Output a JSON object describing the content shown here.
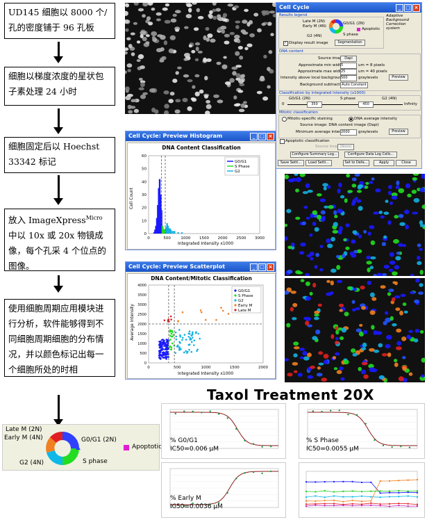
{
  "steps": [
    "UD145 细胞以 8000 个/孔的密度铺于 96 孔板",
    "细胞以梯度浓度的星状包子素处理 24 小时",
    "细胞固定后以 Hoechst 33342 标记",
    "放入 ImageXpress",
    "Micro",
    " 中以 10x 或 20x 物镜成像，每个孔采 4 个位点的图像。",
    "使用细胞周期应用模块进行分析，软件能够得到不同细胞周期细胞的分布情况，并以颜色标记出每一个细胞所处的时相"
  ],
  "cycle_legend": {
    "late_m": "Late M (2N)",
    "early_m": "Early M (4N)",
    "g0g1": "G0/G1 (2N)",
    "g2": "G2 (4N)",
    "s": "S phase",
    "apoptotic": "Apoptotic",
    "apoptotic_color": "#e020d0"
  },
  "cell_cycle_window": {
    "title": "Cell Cycle",
    "results_legend": "Results legend",
    "display_result_image": "Display result image",
    "segmentation": "Segmentation",
    "adaptive_note": "Adaptive Background Correction system",
    "dna_content": "DNA content",
    "source_image": "Source image:",
    "source_val": "Dapi",
    "min_width": "Approximate min width:",
    "min_width_val": "5",
    "min_width_unit": "um = 8 pixels",
    "max_width": "Approximate max width:",
    "max_width_val": "25",
    "max_width_unit": "um = 40 pixels",
    "intensity_above": "Intensity above local background:",
    "intensity_val": "500",
    "intensity_unit": "graylevels",
    "bg_subtraction": "Background subtraction:",
    "bg_val": "Auto Constant",
    "preview": "Preview",
    "classification": "Classification by integrated intensity (x1000)",
    "c_g0g1": "G0/G1 (2N)",
    "c_s": "S phase",
    "c_g2": "G2 (4N)",
    "c_zero": "0",
    "c_350": "350",
    "c_450": "450",
    "c_inf": "Infinity",
    "mitotic": "Mitotic classification",
    "mitotic_staining": "Mitotic-specific staining",
    "dna_average": "DNA average intensity",
    "source_dna": "Source image: DNA content image (Dapi)",
    "min_avg": "Minimum average intensity:",
    "min_avg_val": "2000",
    "min_avg_unit": "graylevels",
    "apoptotic_class": "Apoptotic classification",
    "apo_source": "Source image:",
    "apo_source_val": "(None)",
    "configure_summary": "Configure Summary Log...",
    "configure_data": "Configure Data Log Cells...",
    "save_settings": "Save Setti...",
    "load_settings": "Load Setti...",
    "set_default": "Set to Defa...",
    "apply": "Apply",
    "close": "Close"
  },
  "histogram": {
    "window_title": "Cell Cycle: Preview Histogram",
    "title": "DNA Content Classification",
    "xlabel": "Integrated Intensity x1000",
    "ylabel": "Cell Count"
  },
  "scatter": {
    "window_title": "Cell Cycle: Preview Scatterplot",
    "title": "DNA Content/Mitotic Classification",
    "xlabel": "Integrated Intensity x1000",
    "ylabel": "Average Intensity"
  },
  "taxol_title": "Taxol Treatment 20X",
  "curve_labels": {
    "g0g1_name": "% G0/G1",
    "g0g1_ic50": "IC50=0.006 µM",
    "s_name": "% S Phase",
    "s_ic50": "IC50=0.0055 µM",
    "em_name": "% Early M",
    "em_ic50": "IC50=0.0036 µM"
  },
  "colors": {
    "g0g1": "#1a1aff",
    "s": "#22dd22",
    "g2": "#13b0e0",
    "early_m": "#f08020",
    "late_m": "#e02020",
    "curve": "#8b1a1a"
  },
  "chart_data": [
    {
      "type": "bar",
      "title": "DNA Content Classification",
      "xlabel": "Integrated Intensity x1000",
      "ylabel": "Cell Count",
      "xlim": [
        0,
        3000
      ],
      "ylim": [
        0,
        60
      ],
      "x_ticks": [
        0,
        500,
        1000,
        1500,
        2000,
        2500,
        3000
      ],
      "y_ticks": [
        0,
        10,
        20,
        30,
        40,
        50,
        60
      ],
      "legend": [
        "G0/G1",
        "S Phase",
        "G2"
      ],
      "legend_position": "top-right",
      "thresholds": [
        350,
        450
      ],
      "series": [
        {
          "name": "G0/G1",
          "x": [
            150,
            175,
            200,
            225,
            250,
            275,
            300,
            325,
            350
          ],
          "values": [
            1,
            3,
            6,
            12,
            22,
            35,
            42,
            30,
            18
          ]
        },
        {
          "name": "S Phase",
          "x": [
            375,
            400,
            425,
            450
          ],
          "values": [
            6,
            4,
            3,
            3
          ]
        },
        {
          "name": "G2",
          "x": [
            475,
            500,
            525,
            550,
            575,
            600,
            650,
            700,
            800,
            900
          ],
          "values": [
            5,
            8,
            6,
            4,
            4,
            3,
            2,
            2,
            1,
            1
          ]
        }
      ]
    },
    {
      "type": "scatter",
      "title": "DNA Content/Mitotic Classification",
      "xlabel": "Integrated Intensity x1000",
      "ylabel": "Average Intensity",
      "xlim": [
        0,
        2000
      ],
      "ylim": [
        0,
        4000
      ],
      "x_ticks": [
        0,
        500,
        1000,
        1500,
        2000
      ],
      "y_ticks": [
        0,
        500,
        1000,
        1500,
        2000,
        2500,
        3000,
        3500,
        4000
      ],
      "legend": [
        "G0/G1",
        "S Phase",
        "G2",
        "Early M",
        "Late M"
      ],
      "legend_position": "top-right",
      "threshold_x": [
        350,
        450
      ],
      "threshold_y": 2000
    },
    {
      "type": "line",
      "name": "% G0/G1",
      "ic50": "0.006 µM",
      "shape": "decreasing-sigmoid"
    },
    {
      "type": "line",
      "name": "% S Phase",
      "ic50": "0.0055 µM",
      "shape": "decreasing-sigmoid"
    },
    {
      "type": "line",
      "name": "% Early M",
      "ic50": "0.0036 µM",
      "shape": "increasing-sigmoid"
    }
  ]
}
